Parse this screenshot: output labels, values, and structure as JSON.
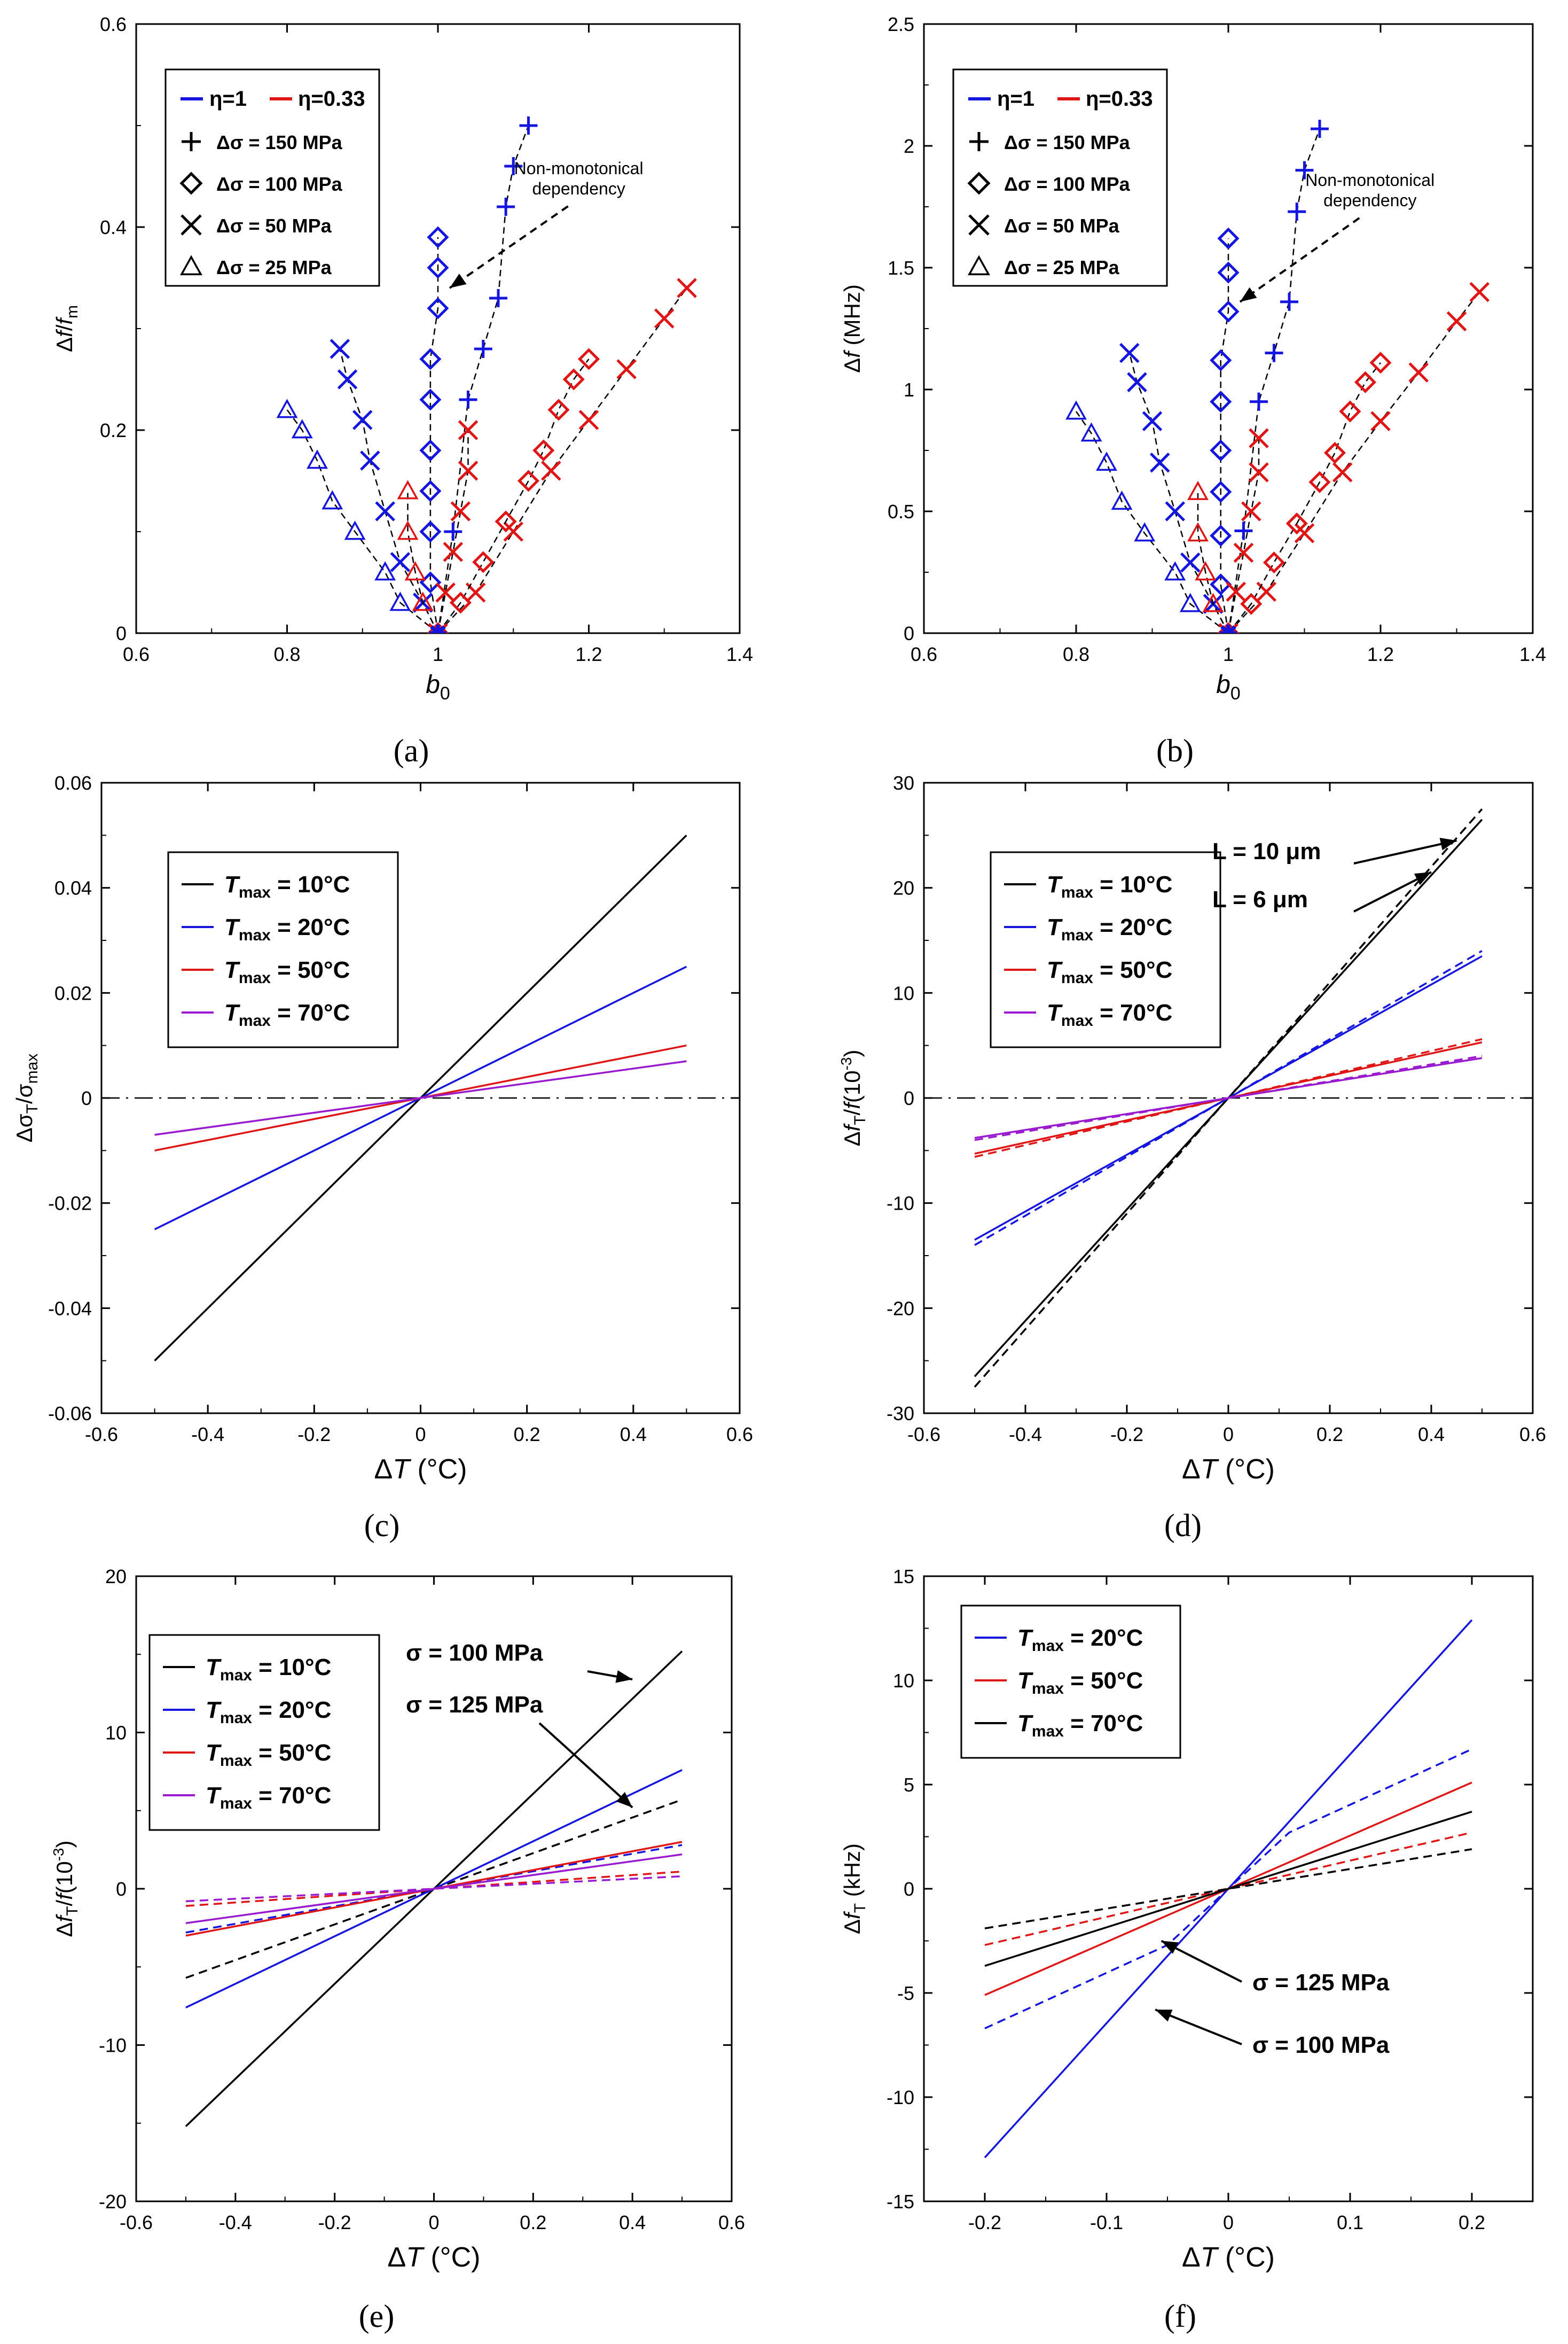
{
  "figure": {
    "description_labels": [
      "(a)",
      "(b)",
      "(c)",
      "(d)",
      "(e)",
      "(f)"
    ]
  },
  "chart_data": [
    {
      "id": "a",
      "panel_label": "(a)",
      "type": "scatter",
      "xlabel": "b0",
      "xlabel_main": "b",
      "xlabel_sub": "0",
      "ylabel": "Δf/fm",
      "xlim": [
        0.6,
        1.4
      ],
      "ylim": [
        0,
        0.6
      ],
      "xticks": [
        0.6,
        0.8,
        1,
        1.2,
        1.4
      ],
      "yticks": [
        0,
        0.2,
        0.4,
        0.6
      ],
      "grid": false,
      "legend": {
        "position": "top-left",
        "entries": [
          "η=1",
          "η=0.33",
          "Δσ = 150 MPa",
          "Δσ = 100 MPa",
          "Δσ = 50 MPa",
          "Δσ = 25 MPa"
        ]
      },
      "annotation": {
        "text": [
          "Non-monotonical",
          "dependency"
        ],
        "arrow_to": [
          1.0,
          0.34
        ],
        "arrow_from": [
          1.13,
          0.41
        ]
      },
      "series": [
        {
          "name": "η=1, Δσ = 150 MPa",
          "color": "#1515e0",
          "marker": "plus",
          "x": [
            1.0,
            1.02,
            1.04,
            1.06,
            1.08,
            1.09,
            1.1,
            1.12
          ],
          "y": [
            0.0,
            0.1,
            0.23,
            0.28,
            0.33,
            0.42,
            0.46,
            0.5
          ]
        },
        {
          "name": "η=1, Δσ = 100 MPa",
          "color": "#1515e0",
          "marker": "diamond",
          "x": [
            1.0,
            0.99,
            0.99,
            0.99,
            0.99,
            0.99,
            0.99,
            1.0,
            1.0,
            1.0
          ],
          "y": [
            0.0,
            0.05,
            0.1,
            0.14,
            0.18,
            0.23,
            0.27,
            0.32,
            0.36,
            0.39
          ]
        },
        {
          "name": "η=1, Δσ = 50 MPa",
          "color": "#1515e0",
          "marker": "cross",
          "x": [
            1.0,
            0.98,
            0.95,
            0.93,
            0.91,
            0.9,
            0.88,
            0.87
          ],
          "y": [
            0.0,
            0.03,
            0.07,
            0.12,
            0.17,
            0.21,
            0.25,
            0.28
          ]
        },
        {
          "name": "η=1, Δσ = 25 MPa",
          "color": "#1515e0",
          "marker": "triangle",
          "x": [
            1.0,
            0.95,
            0.93,
            0.89,
            0.86,
            0.84,
            0.82,
            0.8
          ],
          "y": [
            0.0,
            0.03,
            0.06,
            0.1,
            0.13,
            0.17,
            0.2,
            0.22
          ]
        },
        {
          "name": "η=0.33, Δσ = 150 MPa",
          "color": "#e01515",
          "marker": "cross",
          "x": [
            1.0,
            1.05,
            1.1,
            1.15,
            1.2,
            1.25,
            1.3,
            1.33
          ],
          "y": [
            0.0,
            0.04,
            0.1,
            0.16,
            0.21,
            0.26,
            0.31,
            0.34
          ]
        },
        {
          "name": "η=0.33, Δσ = 100 MPa",
          "color": "#e01515",
          "marker": "diamond",
          "x": [
            1.0,
            1.03,
            1.06,
            1.09,
            1.12,
            1.14,
            1.16,
            1.18,
            1.2
          ],
          "y": [
            0.0,
            0.03,
            0.07,
            0.11,
            0.15,
            0.18,
            0.22,
            0.25,
            0.27
          ]
        },
        {
          "name": "η=0.33, Δσ = 50 MPa",
          "color": "#e01515",
          "marker": "cross",
          "x": [
            1.0,
            1.01,
            1.02,
            1.03,
            1.04,
            1.04
          ],
          "y": [
            0.0,
            0.04,
            0.08,
            0.12,
            0.16,
            0.2
          ]
        },
        {
          "name": "η=0.33, Δσ = 25 MPa",
          "color": "#e01515",
          "marker": "triangle",
          "x": [
            1.0,
            0.98,
            0.97,
            0.96,
            0.96
          ],
          "y": [
            0.0,
            0.03,
            0.06,
            0.1,
            0.14
          ]
        }
      ]
    },
    {
      "id": "b",
      "panel_label": "(b)",
      "type": "scatter",
      "xlabel": "b0",
      "xlabel_main": "b",
      "xlabel_sub": "0",
      "ylabel": "Δf (MHz)",
      "xlim": [
        0.6,
        1.4
      ],
      "ylim": [
        0,
        2.5
      ],
      "xticks": [
        0.6,
        0.8,
        1,
        1.2,
        1.4
      ],
      "yticks": [
        0,
        0.5,
        1,
        1.5,
        2,
        2.5
      ],
      "grid": false,
      "legend": {
        "position": "top-left",
        "entries": [
          "η=1",
          "η=0.33",
          "Δσ = 150 MPa",
          "Δσ = 100 MPa",
          "Δσ = 50 MPa",
          "Δσ = 25 MPa"
        ]
      },
      "annotation": {
        "text": [
          "Non-monotonical",
          "dependency"
        ],
        "arrow_to": [
          1.0,
          1.36
        ],
        "arrow_from": [
          1.13,
          1.66
        ]
      },
      "series": [
        {
          "name": "η=1, Δσ = 150 MPa",
          "color": "#1515e0",
          "marker": "plus",
          "x": [
            1.0,
            1.02,
            1.04,
            1.06,
            1.08,
            1.09,
            1.1,
            1.12
          ],
          "y": [
            0.0,
            0.42,
            0.95,
            1.15,
            1.36,
            1.73,
            1.9,
            2.07
          ]
        },
        {
          "name": "η=1, Δσ = 100 MPa",
          "color": "#1515e0",
          "marker": "diamond",
          "x": [
            1.0,
            0.99,
            0.99,
            0.99,
            0.99,
            0.99,
            0.99,
            1.0,
            1.0,
            1.0
          ],
          "y": [
            0.0,
            0.2,
            0.4,
            0.58,
            0.75,
            0.95,
            1.12,
            1.32,
            1.48,
            1.62
          ]
        },
        {
          "name": "η=1, Δσ = 50 MPa",
          "color": "#1515e0",
          "marker": "cross",
          "x": [
            1.0,
            0.98,
            0.95,
            0.93,
            0.91,
            0.9,
            0.88,
            0.87
          ],
          "y": [
            0.0,
            0.12,
            0.29,
            0.5,
            0.7,
            0.87,
            1.03,
            1.15
          ]
        },
        {
          "name": "η=1, Δσ = 25 MPa",
          "color": "#1515e0",
          "marker": "triangle",
          "x": [
            1.0,
            0.95,
            0.93,
            0.89,
            0.86,
            0.84,
            0.82,
            0.8
          ],
          "y": [
            0.0,
            0.12,
            0.25,
            0.41,
            0.54,
            0.7,
            0.82,
            0.91
          ]
        },
        {
          "name": "η=0.33, Δσ = 150 MPa",
          "color": "#e01515",
          "marker": "cross",
          "x": [
            1.0,
            1.05,
            1.1,
            1.15,
            1.2,
            1.25,
            1.3,
            1.33
          ],
          "y": [
            0.0,
            0.17,
            0.41,
            0.66,
            0.87,
            1.07,
            1.28,
            1.4
          ]
        },
        {
          "name": "η=0.33, Δσ = 100 MPa",
          "color": "#e01515",
          "marker": "diamond",
          "x": [
            1.0,
            1.03,
            1.06,
            1.09,
            1.12,
            1.14,
            1.16,
            1.18,
            1.2
          ],
          "y": [
            0.0,
            0.12,
            0.29,
            0.45,
            0.62,
            0.74,
            0.91,
            1.03,
            1.11
          ]
        },
        {
          "name": "η=0.33, Δσ = 50 MPa",
          "color": "#e01515",
          "marker": "cross",
          "x": [
            1.0,
            1.01,
            1.02,
            1.03,
            1.04,
            1.04
          ],
          "y": [
            0.0,
            0.17,
            0.33,
            0.5,
            0.66,
            0.8
          ]
        },
        {
          "name": "η=0.33, Δσ = 25 MPa",
          "color": "#e01515",
          "marker": "triangle",
          "x": [
            1.0,
            0.98,
            0.97,
            0.96,
            0.96
          ],
          "y": [
            0.0,
            0.12,
            0.25,
            0.41,
            0.58
          ]
        }
      ]
    },
    {
      "id": "c",
      "panel_label": "(c)",
      "type": "line",
      "xlabel": "ΔT (°C)",
      "ylabel": "Δσ_T/σ_max",
      "xlim": [
        -0.6,
        0.6
      ],
      "ylim": [
        -0.06,
        0.06
      ],
      "xticks": [
        -0.6,
        -0.4,
        -0.2,
        0,
        0.2,
        0.4,
        0.6
      ],
      "yticks": [
        -0.06,
        -0.04,
        -0.02,
        0,
        0.02,
        0.04,
        0.06
      ],
      "grid": false,
      "zero_line": true,
      "legend": {
        "position": "top-left",
        "entries": [
          "Tmax = 10°C",
          "Tmax = 20°C",
          "Tmax = 50°C",
          "Tmax = 70°C"
        ]
      },
      "series": [
        {
          "name": "Tmax = 10°C",
          "color": "#000000",
          "style": "solid",
          "x": [
            -0.5,
            0.5
          ],
          "y": [
            -0.05,
            0.05
          ]
        },
        {
          "name": "Tmax = 20°C",
          "color": "#1515e0",
          "style": "solid",
          "x": [
            -0.5,
            0.5
          ],
          "y": [
            -0.025,
            0.025
          ]
        },
        {
          "name": "Tmax = 50°C",
          "color": "#e01515",
          "style": "solid",
          "x": [
            -0.5,
            0.5
          ],
          "y": [
            -0.01,
            0.01
          ]
        },
        {
          "name": "Tmax = 70°C",
          "color": "#9a1ad0",
          "style": "solid",
          "x": [
            -0.5,
            0.5
          ],
          "y": [
            -0.007,
            0.007
          ]
        }
      ]
    },
    {
      "id": "d",
      "panel_label": "(d)",
      "type": "line",
      "xlabel": "ΔT (°C)",
      "ylabel": "Δf_T/f(10^-3)",
      "xlim": [
        -0.6,
        0.6
      ],
      "ylim": [
        -30,
        30
      ],
      "xticks": [
        -0.6,
        -0.4,
        -0.2,
        0,
        0.2,
        0.4,
        0.6
      ],
      "yticks": [
        -30,
        -20,
        -10,
        0,
        10,
        20,
        30
      ],
      "grid": false,
      "zero_line": true,
      "legend": {
        "position": "top-left",
        "entries": [
          "Tmax = 10°C",
          "Tmax = 20°C",
          "Tmax = 50°C",
          "Tmax = 70°C"
        ]
      },
      "annotations": [
        {
          "text": "L = 10 μm",
          "arrow_to": [
            0.45,
            24.5
          ]
        },
        {
          "text": "L = 6 μm",
          "arrow_to": [
            0.4,
            21.5
          ]
        }
      ],
      "series": [
        {
          "name": "Tmax = 10°C, L = 10 μm",
          "color": "#000000",
          "style": "solid",
          "x": [
            -0.5,
            0.5
          ],
          "y": [
            -26.5,
            26.5
          ]
        },
        {
          "name": "Tmax = 10°C, L = 6 μm",
          "color": "#000000",
          "style": "dashed",
          "x": [
            -0.5,
            0.5
          ],
          "y": [
            -27.5,
            27.5
          ]
        },
        {
          "name": "Tmax = 20°C, L = 10 μm",
          "color": "#1515e0",
          "style": "solid",
          "x": [
            -0.5,
            0.5
          ],
          "y": [
            -13.5,
            13.5
          ]
        },
        {
          "name": "Tmax = 20°C, L = 6 μm",
          "color": "#1515e0",
          "style": "dashed",
          "x": [
            -0.5,
            0.5
          ],
          "y": [
            -14,
            14
          ]
        },
        {
          "name": "Tmax = 50°C, L = 10 μm",
          "color": "#e01515",
          "style": "solid",
          "x": [
            -0.5,
            0.5
          ],
          "y": [
            -5.3,
            5.3
          ]
        },
        {
          "name": "Tmax = 50°C, L = 6 μm",
          "color": "#e01515",
          "style": "dashed",
          "x": [
            -0.5,
            0.5
          ],
          "y": [
            -5.6,
            5.6
          ]
        },
        {
          "name": "Tmax = 70°C, L = 10 μm",
          "color": "#9a1ad0",
          "style": "solid",
          "x": [
            -0.5,
            0.5
          ],
          "y": [
            -3.8,
            3.8
          ]
        },
        {
          "name": "Tmax = 70°C, L = 6 μm",
          "color": "#9a1ad0",
          "style": "dashed",
          "x": [
            -0.5,
            0.5
          ],
          "y": [
            -4.0,
            4.0
          ]
        }
      ]
    },
    {
      "id": "e",
      "panel_label": "(e)",
      "type": "line",
      "xlabel": "ΔT (°C)",
      "ylabel": "Δf_T/f(10^-3)",
      "xlim": [
        -0.6,
        0.6
      ],
      "ylim": [
        -20,
        20
      ],
      "xticks": [
        -0.6,
        -0.4,
        -0.2,
        0,
        0.2,
        0.4,
        0.6
      ],
      "yticks": [
        -20,
        -10,
        0,
        10,
        20
      ],
      "grid": false,
      "zero_line": false,
      "legend": {
        "position": "top-left",
        "entries": [
          "Tmax = 10°C",
          "Tmax = 20°C",
          "Tmax = 50°C",
          "Tmax = 70°C"
        ]
      },
      "annotations": [
        {
          "text": "σ = 100 MPa",
          "arrow_to": [
            0.4,
            13.4
          ]
        },
        {
          "text": "σ = 125 MPa",
          "arrow_to": [
            0.4,
            5.2
          ]
        }
      ],
      "series": [
        {
          "name": "Tmax = 10°C, σ = 100 MPa",
          "color": "#000000",
          "style": "solid",
          "x": [
            -0.5,
            0.5
          ],
          "y": [
            -15.2,
            15.2
          ]
        },
        {
          "name": "Tmax = 10°C, σ = 125 MPa",
          "color": "#000000",
          "style": "dashed",
          "x": [
            -0.5,
            0.5
          ],
          "y": [
            -5.7,
            5.7
          ]
        },
        {
          "name": "Tmax = 20°C, σ = 100 MPa",
          "color": "#1515e0",
          "style": "solid",
          "x": [
            -0.5,
            0.5
          ],
          "y": [
            -7.6,
            7.6
          ]
        },
        {
          "name": "Tmax = 20°C, σ = 125 MPa",
          "color": "#1515e0",
          "style": "dashed",
          "x": [
            -0.5,
            0.5
          ],
          "y": [
            -2.8,
            2.8
          ]
        },
        {
          "name": "Tmax = 50°C, σ = 100 MPa",
          "color": "#e01515",
          "style": "solid",
          "x": [
            -0.5,
            0.5
          ],
          "y": [
            -3.0,
            3.0
          ]
        },
        {
          "name": "Tmax = 50°C, σ = 125 MPa",
          "color": "#e01515",
          "style": "dashed",
          "x": [
            -0.5,
            0.5
          ],
          "y": [
            -1.1,
            1.1
          ]
        },
        {
          "name": "Tmax = 70°C, σ = 100 MPa",
          "color": "#9a1ad0",
          "style": "solid",
          "x": [
            -0.5,
            0.5
          ],
          "y": [
            -2.2,
            2.2
          ]
        },
        {
          "name": "Tmax = 70°C, σ = 125 MPa",
          "color": "#9a1ad0",
          "style": "dashed",
          "x": [
            -0.5,
            0.5
          ],
          "y": [
            -0.8,
            0.8
          ]
        }
      ]
    },
    {
      "id": "f",
      "panel_label": "(f)",
      "type": "line",
      "xlabel": "ΔT (°C)",
      "ylabel": "Δf_T (kHz)",
      "xlim": [
        -0.25,
        0.25
      ],
      "ylim": [
        -15,
        15
      ],
      "xticks": [
        -0.2,
        -0.1,
        0,
        0.1,
        0.2
      ],
      "yticks": [
        -15,
        -10,
        -5,
        0,
        5,
        10,
        15
      ],
      "grid": false,
      "zero_line": false,
      "legend": {
        "position": "top-left",
        "entries": [
          "Tmax = 20°C",
          "Tmax = 50°C",
          "Tmax = 70°C"
        ]
      },
      "annotations": [
        {
          "text": "σ = 125 MPa",
          "arrow_to": [
            -0.055,
            -2.5
          ]
        },
        {
          "text": "σ = 100 MPa",
          "arrow_to": [
            -0.06,
            -5.8
          ]
        }
      ],
      "series": [
        {
          "name": "Tmax = 20°C, σ = 100 MPa",
          "color": "#1515e0",
          "style": "solid",
          "x": [
            -0.2,
            0.2
          ],
          "y": [
            -12.9,
            12.9
          ]
        },
        {
          "name": "Tmax = 20°C, σ = 125 MPa",
          "color": "#1515e0",
          "style": "dashed",
          "x": [
            -0.2,
            -0.05,
            0,
            0.05,
            0.2
          ],
          "y": [
            -6.7,
            -2.7,
            0,
            2.7,
            6.7
          ]
        },
        {
          "name": "Tmax = 50°C, σ = 100 MPa",
          "color": "#e01515",
          "style": "solid",
          "x": [
            -0.2,
            0.2
          ],
          "y": [
            -5.1,
            5.1
          ]
        },
        {
          "name": "Tmax = 50°C, σ = 125 MPa",
          "color": "#e01515",
          "style": "dashed",
          "x": [
            -0.2,
            0.2
          ],
          "y": [
            -2.7,
            2.7
          ]
        },
        {
          "name": "Tmax = 70°C, σ = 100 MPa",
          "color": "#000000",
          "style": "solid",
          "x": [
            -0.2,
            0.2
          ],
          "y": [
            -3.7,
            3.7
          ]
        },
        {
          "name": "Tmax = 70°C, σ = 125 MPa",
          "color": "#000000",
          "style": "dashed",
          "x": [
            -0.2,
            0.2
          ],
          "y": [
            -1.9,
            1.9
          ]
        }
      ]
    }
  ]
}
